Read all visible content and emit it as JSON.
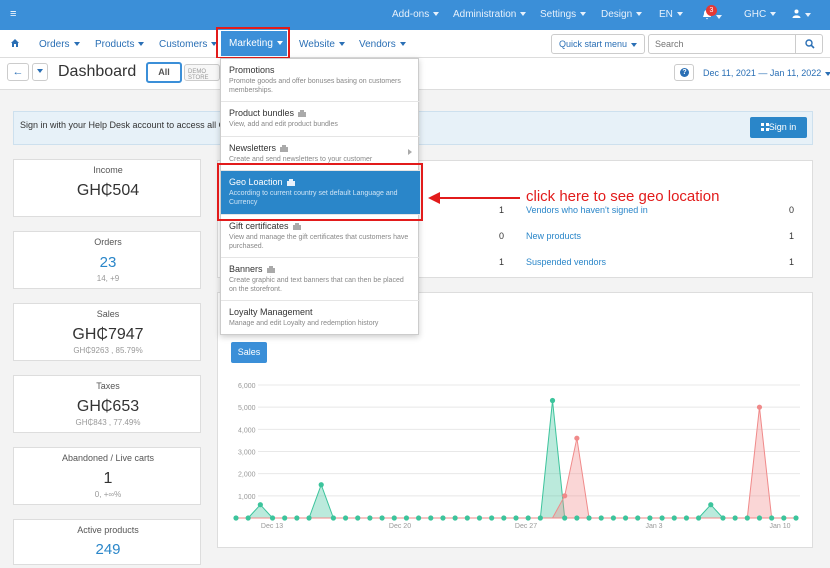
{
  "topbar": {
    "items": [
      "Add-ons",
      "Administration",
      "Settings",
      "Design",
      "EN"
    ],
    "notifications_count": "3",
    "currency": "GHC"
  },
  "nav": {
    "items": [
      "Orders",
      "Products",
      "Customers",
      "Marketing",
      "Website",
      "Vendors"
    ],
    "quick_start": "Quick start menu",
    "search_placeholder": "Search"
  },
  "title_row": {
    "title": "Dashboard",
    "all_label": "All",
    "demo_label": "DEMO STORE",
    "date_range": "Dec 11, 2021 — Jan 11, 2022"
  },
  "notice": {
    "text": "Sign in with your Help Desk account to access all CS",
    "signin_label": "Sign in"
  },
  "stats": [
    {
      "label": "Income",
      "value": "GH₵504",
      "sub": ""
    },
    {
      "label": "Orders",
      "value": "23",
      "sub": "14, +9"
    },
    {
      "label": "Sales",
      "value": "GH₵7947",
      "sub": "GH₵9263 , 85.79%"
    },
    {
      "label": "Taxes",
      "value": "GH₵653",
      "sub": "GH₵843 , 77.49%"
    },
    {
      "label": "Abandoned / Live carts",
      "value": "1",
      "sub": "0, +∞%"
    },
    {
      "label": "Active products",
      "value": "249",
      "sub": ""
    }
  ],
  "vendors_panel": {
    "left_counts": [
      "1",
      "0",
      "1"
    ],
    "rows": [
      {
        "label": "Vendors who haven't signed in",
        "count": "0"
      },
      {
        "label": "New products",
        "count": "1"
      },
      {
        "label": "Suspended vendors",
        "count": "1"
      }
    ]
  },
  "marketing_menu": [
    {
      "title": "Promotions",
      "desc": "Promote goods and offer bonuses basing on customers memberships."
    },
    {
      "title": "Product bundles",
      "desc": "View, add and edit product bundles"
    },
    {
      "title": "Newsletters",
      "desc": "Create and send newsletters to your customer"
    },
    {
      "title": "Geo Loaction",
      "desc": "According to current country set default Language and Currency"
    },
    {
      "title": "Gift certificates",
      "desc": "View and manage the gift certificates that customers have purchased."
    },
    {
      "title": "Banners",
      "desc": "Create graphic and text banners that can then be placed on the storefront."
    },
    {
      "title": "Loyalty Management",
      "desc": "Manage and edit Loyalty and redemption history"
    }
  ],
  "annotation": "click here to see geo location",
  "chart": {
    "tab_label": "Sales"
  },
  "chart_data": {
    "type": "area",
    "y_ticks": [
      "6,000",
      "5,000",
      "4,000",
      "3,000",
      "2,000",
      "1,000"
    ],
    "x_ticks": [
      "Dec 13",
      "Dec 20",
      "Dec 27",
      "Jan 3",
      "Jan 10"
    ],
    "ylim": [
      0,
      6000
    ],
    "x_days": 32,
    "series": [
      {
        "color": "#3cc49c",
        "points": [
          [
            0,
            0
          ],
          [
            1,
            0
          ],
          [
            2,
            600
          ],
          [
            3,
            0
          ],
          [
            4,
            0
          ],
          [
            5,
            0
          ],
          [
            6,
            0
          ],
          [
            7,
            1500
          ],
          [
            8,
            0
          ],
          [
            9,
            0
          ],
          [
            10,
            0
          ],
          [
            11,
            0
          ],
          [
            12,
            0
          ],
          [
            13,
            0
          ],
          [
            14,
            0
          ],
          [
            15,
            0
          ],
          [
            16,
            0
          ],
          [
            17,
            0
          ],
          [
            18,
            0
          ],
          [
            19,
            0
          ],
          [
            20,
            0
          ],
          [
            21,
            0
          ],
          [
            22,
            0
          ],
          [
            23,
            0
          ],
          [
            24,
            0
          ],
          [
            25,
            0
          ],
          [
            26,
            5300
          ],
          [
            27,
            0
          ],
          [
            28,
            0
          ],
          [
            29,
            0
          ],
          [
            30,
            0
          ],
          [
            31,
            0
          ],
          [
            32,
            0
          ],
          [
            33,
            0
          ],
          [
            34,
            0
          ],
          [
            35,
            0
          ],
          [
            36,
            0
          ],
          [
            37,
            0
          ],
          [
            38,
            0
          ],
          [
            39,
            600
          ],
          [
            40,
            0
          ],
          [
            41,
            0
          ],
          [
            42,
            0
          ],
          [
            43,
            0
          ],
          [
            44,
            0
          ],
          [
            45,
            0
          ],
          [
            46,
            0
          ]
        ]
      },
      {
        "color": "#f08a8a",
        "points": [
          [
            0,
            0
          ],
          [
            1,
            0
          ],
          [
            2,
            0
          ],
          [
            3,
            0
          ],
          [
            4,
            0
          ],
          [
            5,
            0
          ],
          [
            6,
            0
          ],
          [
            7,
            0
          ],
          [
            8,
            0
          ],
          [
            9,
            0
          ],
          [
            10,
            0
          ],
          [
            11,
            0
          ],
          [
            12,
            0
          ],
          [
            13,
            0
          ],
          [
            14,
            0
          ],
          [
            15,
            0
          ],
          [
            16,
            0
          ],
          [
            17,
            0
          ],
          [
            18,
            0
          ],
          [
            19,
            0
          ],
          [
            20,
            0
          ],
          [
            21,
            0
          ],
          [
            22,
            0
          ],
          [
            23,
            0
          ],
          [
            24,
            0
          ],
          [
            25,
            0
          ],
          [
            26,
            0
          ],
          [
            27,
            1000
          ],
          [
            28,
            3600
          ],
          [
            29,
            0
          ],
          [
            30,
            0
          ],
          [
            31,
            0
          ],
          [
            32,
            0
          ],
          [
            33,
            0
          ],
          [
            34,
            0
          ],
          [
            35,
            0
          ],
          [
            36,
            0
          ],
          [
            37,
            0
          ],
          [
            38,
            0
          ],
          [
            39,
            0
          ],
          [
            40,
            0
          ],
          [
            41,
            0
          ],
          [
            42,
            0
          ],
          [
            43,
            5000
          ],
          [
            44,
            0
          ],
          [
            45,
            0
          ],
          [
            46,
            0
          ]
        ]
      }
    ]
  }
}
